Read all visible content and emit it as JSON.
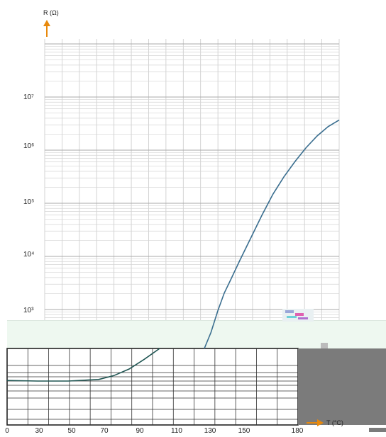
{
  "chart_data": {
    "type": "line",
    "xlabel": "T (°C)",
    "ylabel": "R (Ω)",
    "x_ticks": [
      "0",
      "30",
      "50",
      "70",
      "90",
      "110",
      "130",
      "150",
      "180"
    ],
    "y_ticks": [
      "10⁷",
      "10⁶",
      "10⁵",
      "10⁴",
      "10³"
    ],
    "y_scale": "log",
    "grid": true,
    "series_color": "#3a6e8f",
    "upper_segment": {
      "x": [
        124,
        127,
        130,
        133,
        136,
        140,
        145,
        150,
        155,
        160,
        165,
        170,
        175,
        180,
        185
      ],
      "y": [
        1000,
        2000,
        5000,
        11000,
        20000,
        45000,
        120000,
        320000,
        800000,
        1700000,
        3300000,
        6000000,
        10000000,
        15000000,
        20000000
      ]
    },
    "lower_segment": {
      "x": [
        0,
        20,
        40,
        60,
        70,
        80,
        90,
        100
      ],
      "y": [
        0.32,
        0.315,
        0.315,
        0.33,
        0.37,
        0.45,
        0.6,
        0.85
      ]
    }
  }
}
